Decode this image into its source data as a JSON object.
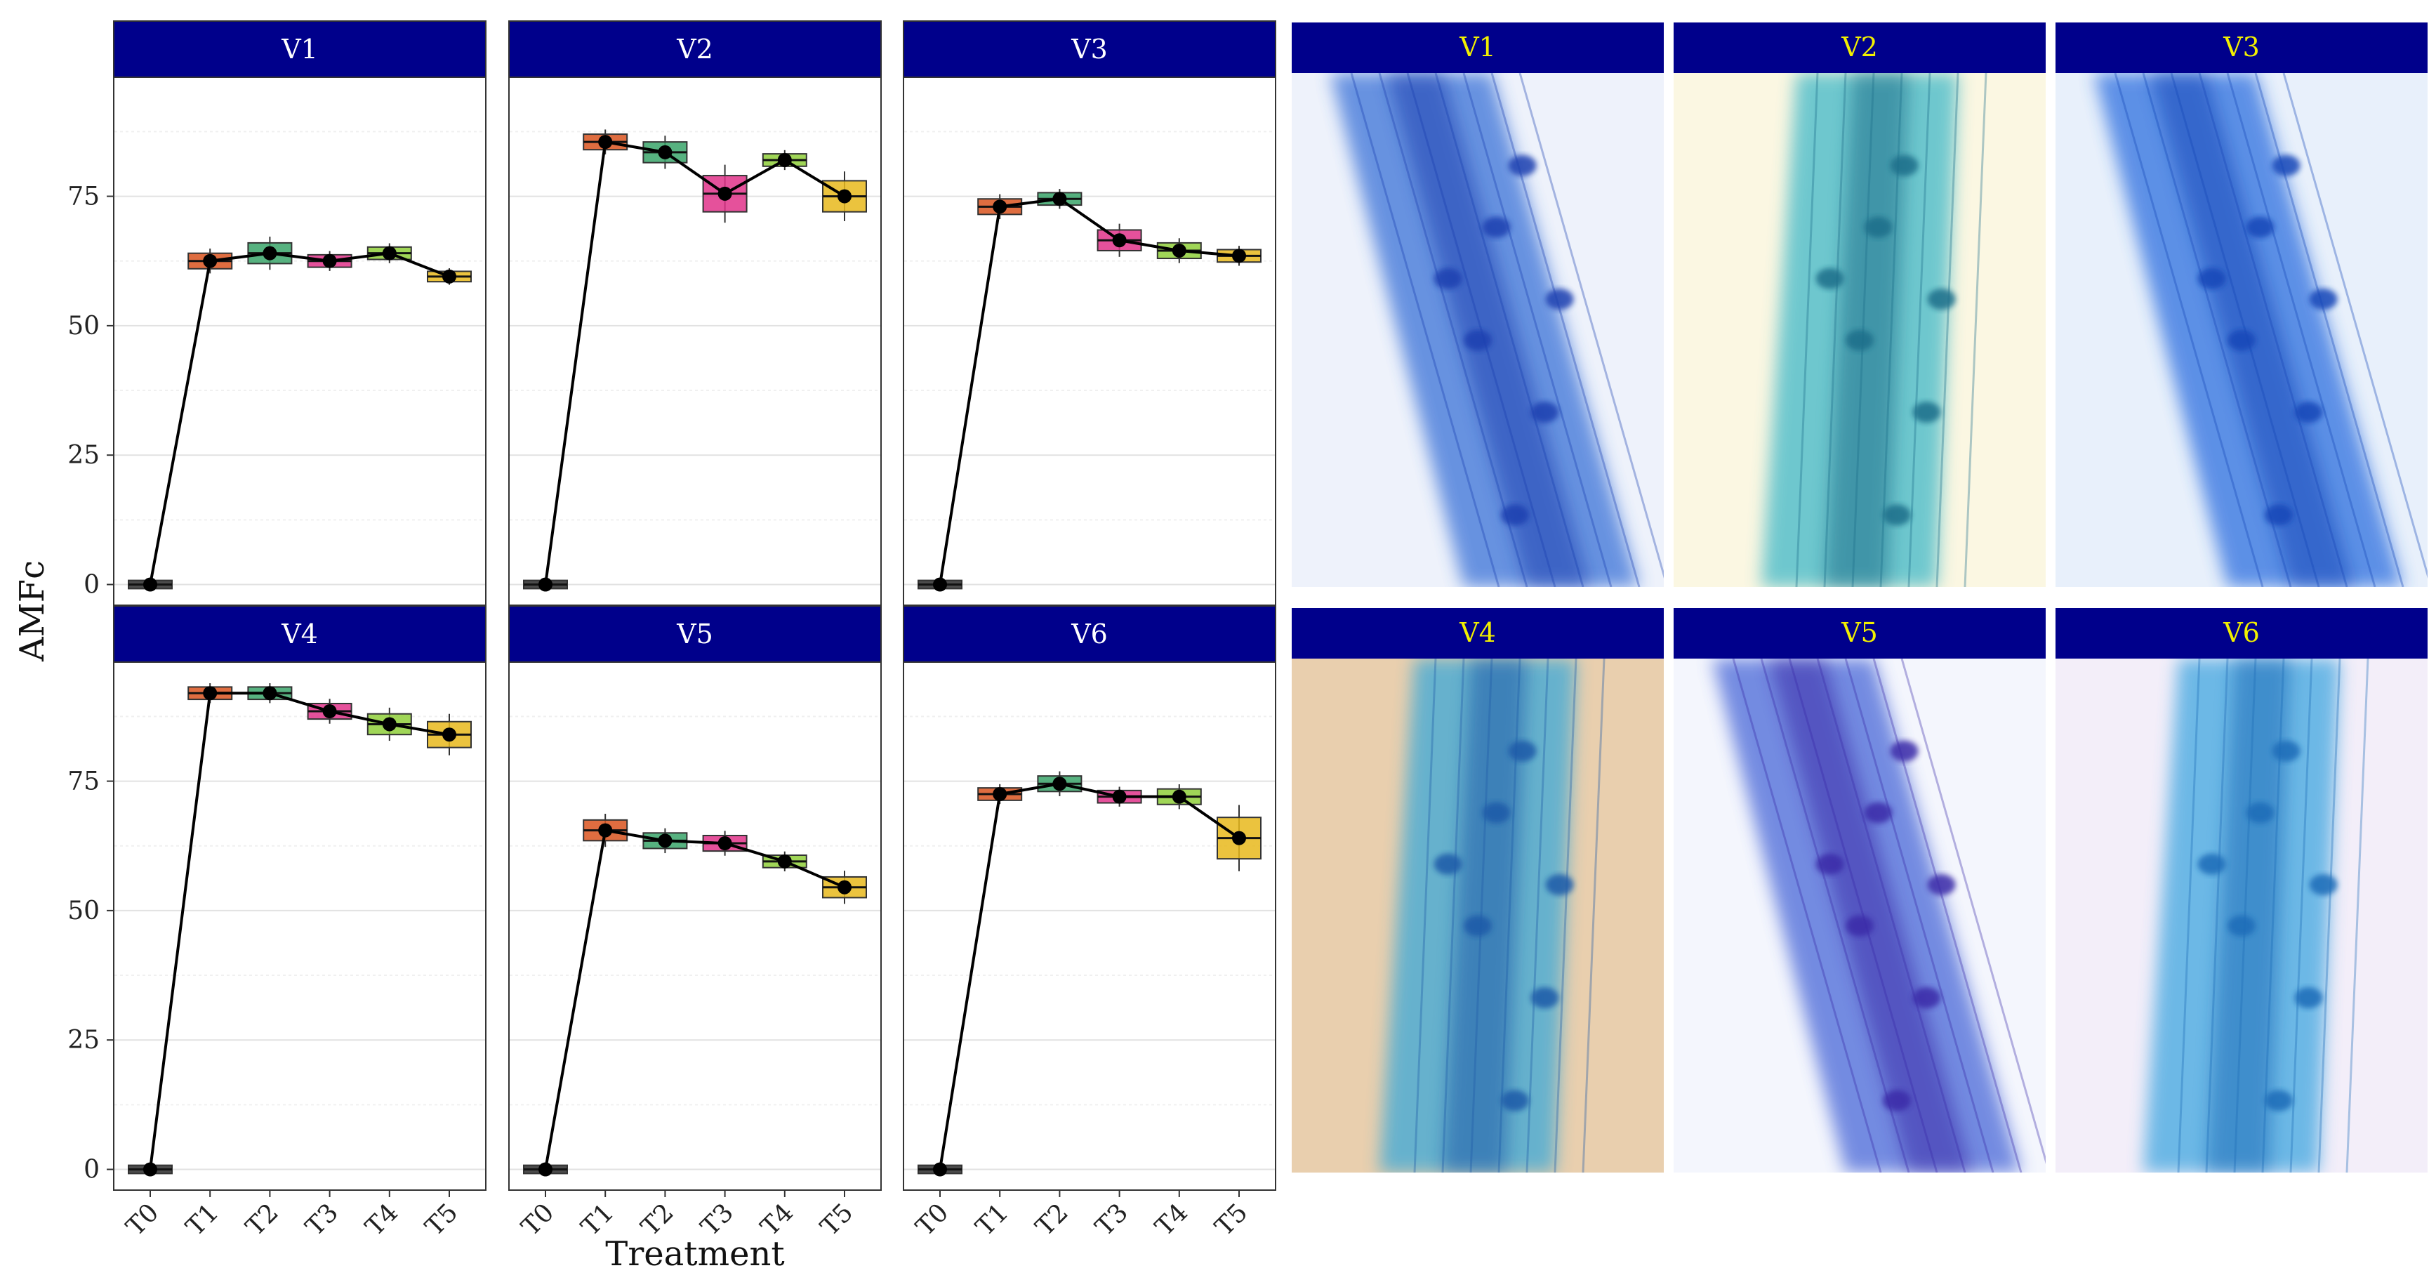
{
  "chart_data": {
    "type": "box",
    "title": "",
    "xlabel": "Treatment",
    "ylabel": "AMFc",
    "categories": [
      "T0",
      "T1",
      "T2",
      "T3",
      "T4",
      "T5"
    ],
    "yticks": [
      0,
      25,
      50,
      75
    ],
    "ylim": [
      -4,
      98
    ],
    "box_colors": [
      "#2b2b2b",
      "#d9541e",
      "#3aa46a",
      "#e0328a",
      "#8fcf3a",
      "#e8b81c"
    ],
    "panels": [
      {
        "label": "V1",
        "values": [
          0,
          62.5,
          64,
          62.5,
          64,
          59.5
        ],
        "spread": [
          0.8,
          1.5,
          2,
          1.2,
          1.2,
          1
        ]
      },
      {
        "label": "V2",
        "values": [
          0,
          85.5,
          83.5,
          75.5,
          82,
          75
        ],
        "spread": [
          0.8,
          1.5,
          2,
          3.5,
          1.2,
          3
        ]
      },
      {
        "label": "V3",
        "values": [
          0,
          73,
          74.5,
          66.5,
          64.5,
          63.5
        ],
        "spread": [
          0.8,
          1.5,
          1.2,
          2,
          1.5,
          1.2
        ]
      },
      {
        "label": "V4",
        "values": [
          0,
          92,
          92,
          88.5,
          86,
          84
        ],
        "spread": [
          0.8,
          1.2,
          1.2,
          1.5,
          2,
          2.5
        ]
      },
      {
        "label": "V5",
        "values": [
          0,
          65.5,
          63.5,
          63,
          59.5,
          54.5
        ],
        "spread": [
          0.8,
          2,
          1.5,
          1.5,
          1.2,
          2
        ]
      },
      {
        "label": "V6",
        "values": [
          0,
          72.5,
          74.5,
          72,
          72,
          64
        ],
        "spread": [
          0.8,
          1.2,
          1.5,
          1.2,
          1.5,
          4
        ]
      }
    ]
  },
  "micrographs": [
    {
      "label": "V1",
      "bg": "#eef2fb",
      "stain": "#3b72d8",
      "dark": "#1a3fb0"
    },
    {
      "label": "V2",
      "bg": "#fbf7e2",
      "stain": "#3fb8c8",
      "dark": "#1d6e8a"
    },
    {
      "label": "V3",
      "bg": "#e8f0fb",
      "stain": "#2d6fe0",
      "dark": "#1547b8"
    },
    {
      "label": "V4",
      "bg": "#e9cfae",
      "stain": "#3aa8d8",
      "dark": "#1e5aa8"
    },
    {
      "label": "V5",
      "bg": "#f4f6fd",
      "stain": "#4a68d8",
      "dark": "#3a2aa8"
    },
    {
      "label": "V6",
      "bg": "#f3eef9",
      "stain": "#3fa6e0",
      "dark": "#1e6cb8"
    }
  ],
  "colors": {
    "strip": "#00008b",
    "strip_text": "#ffffff",
    "photo_strip_text": "#f2f000",
    "line": "#000000"
  }
}
